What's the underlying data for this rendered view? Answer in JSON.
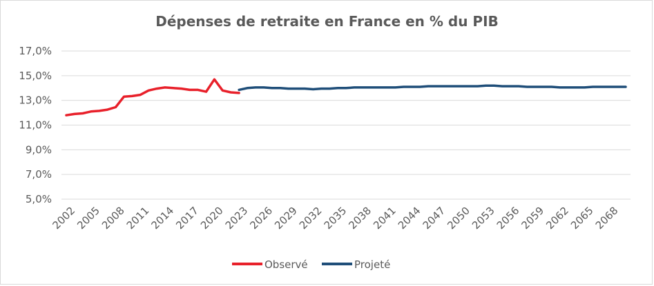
{
  "chart_data": {
    "type": "line",
    "title": "Dépenses de retraite en France en % du PIB",
    "xlabel": "",
    "ylabel": "",
    "ylim": [
      5.0,
      17.0
    ],
    "yticks": [
      "5,0%",
      "7,0%",
      "9,0%",
      "11,0%",
      "13,0%",
      "15,0%",
      "17,0%"
    ],
    "xticks": [
      "2002",
      "2005",
      "2008",
      "2011",
      "2014",
      "2017",
      "2020",
      "2023",
      "2026",
      "2029",
      "2032",
      "2035",
      "2038",
      "2041",
      "2044",
      "2047",
      "2050",
      "2053",
      "2056",
      "2059",
      "2062",
      "2065",
      "2068"
    ],
    "grid": "horizontal",
    "legend_position": "bottom",
    "series": [
      {
        "name": "Observé",
        "color": "#e8202a",
        "x": [
          2002,
          2003,
          2004,
          2005,
          2006,
          2007,
          2008,
          2009,
          2010,
          2011,
          2012,
          2013,
          2014,
          2015,
          2016,
          2017,
          2018,
          2019,
          2020,
          2021,
          2022,
          2023
        ],
        "y": [
          11.8,
          11.9,
          11.95,
          12.1,
          12.15,
          12.25,
          12.45,
          13.3,
          13.35,
          13.45,
          13.8,
          13.95,
          14.05,
          14.0,
          13.95,
          13.85,
          13.85,
          13.7,
          14.7,
          13.8,
          13.65,
          13.6
        ]
      },
      {
        "name": "Projeté",
        "color": "#1f4e79",
        "x": [
          2023,
          2024,
          2025,
          2026,
          2027,
          2028,
          2029,
          2030,
          2031,
          2032,
          2033,
          2034,
          2035,
          2036,
          2037,
          2038,
          2039,
          2040,
          2041,
          2042,
          2043,
          2044,
          2045,
          2046,
          2047,
          2048,
          2049,
          2050,
          2051,
          2052,
          2053,
          2054,
          2055,
          2056,
          2057,
          2058,
          2059,
          2060,
          2061,
          2062,
          2063,
          2064,
          2065,
          2066,
          2067,
          2068,
          2069,
          2070
        ],
        "y": [
          13.85,
          14.0,
          14.05,
          14.05,
          14.0,
          14.0,
          13.95,
          13.95,
          13.95,
          13.9,
          13.95,
          13.95,
          14.0,
          14.0,
          14.05,
          14.05,
          14.05,
          14.05,
          14.05,
          14.05,
          14.1,
          14.1,
          14.1,
          14.15,
          14.15,
          14.15,
          14.15,
          14.15,
          14.15,
          14.15,
          14.2,
          14.2,
          14.15,
          14.15,
          14.15,
          14.1,
          14.1,
          14.1,
          14.1,
          14.05,
          14.05,
          14.05,
          14.05,
          14.1,
          14.1,
          14.1,
          14.1,
          14.1
        ]
      }
    ]
  }
}
